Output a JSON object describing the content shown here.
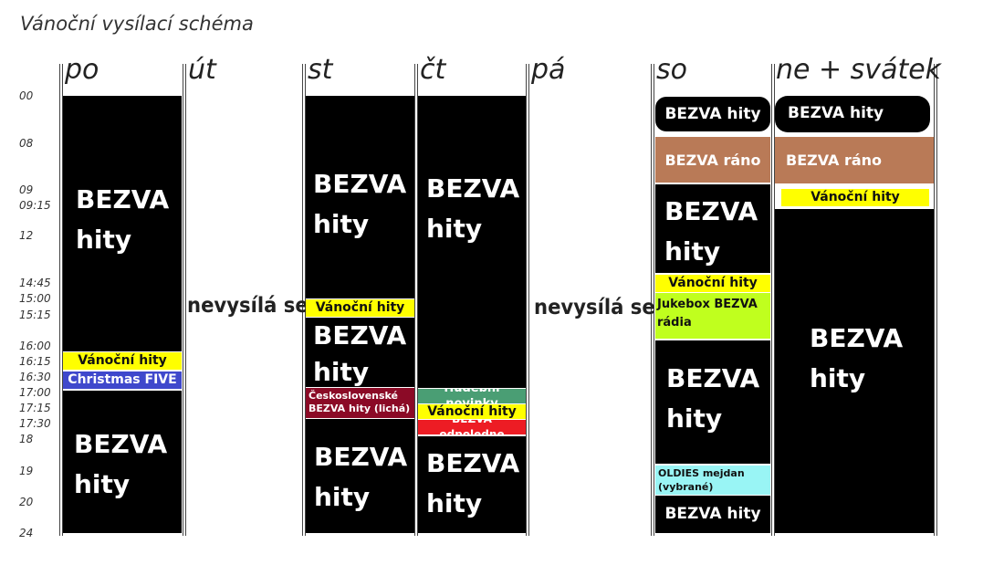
{
  "title": "Vánoční vysílací schéma",
  "days": [
    "po",
    "út",
    "st",
    "čt",
    "pá",
    "so",
    "ne + svátek"
  ],
  "times": [
    "00",
    "08",
    "09",
    "09:15",
    "12",
    "14:45",
    "15:00",
    "15:15",
    "16:00",
    "16:15",
    "16:30",
    "17:00",
    "17:15",
    "17:30",
    "18",
    "19",
    "20",
    "24"
  ],
  "no_broadcast": "nevysílá se",
  "colors": {
    "black": "#000000",
    "yellow": "#ffff00",
    "blue": "#3f48cc",
    "maroon": "#8b0a26",
    "green": "#4a9e74",
    "red": "#ed1c24",
    "brown": "#b97a57",
    "lime": "#c0ff1e",
    "cyan": "#99f5f5"
  },
  "blocks": {
    "po_bezva_1": "BEZVA hity",
    "po_vanocni": "Vánoční hity",
    "po_christmas": "Christmas FIVE",
    "po_bezva_2": "BEZVA hity",
    "st_bezva_1": "BEZVA hity",
    "st_vanocni": "Vánoční hity",
    "st_bezva_2": "BEZVA hity",
    "st_ceskoslovenske": "Československé BEZVA hity (lichá)",
    "st_bezva_3": "BEZVA hity",
    "ct_bezva_1": "BEZVA hity",
    "ct_hudebni": "Hudební novinky",
    "ct_vanocni": "Vánoční hity",
    "ct_odpoledne": "BEZVA odpoledne",
    "ct_bezva_2": "BEZVA hity",
    "so_bezva_top": "BEZVA hity",
    "so_rano": "BEZVA ráno",
    "so_bezva_1": "BEZVA hity",
    "so_vanocni": "Vánoční hity",
    "so_jukebox": "Jukebox BEZVA rádia",
    "so_bezva_2": "BEZVA hity",
    "so_oldies": "OLDIES mejdan (vybrané)",
    "so_bezva_bottom": "BEZVA hity",
    "ne_bezva_top": "BEZVA hity",
    "ne_rano": "BEZVA ráno",
    "ne_vanocni": "Vánoční hity",
    "ne_bezva": "BEZVA hity"
  }
}
